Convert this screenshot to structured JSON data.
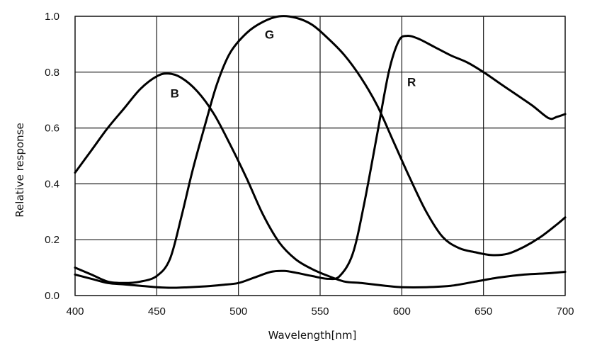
{
  "chart_data": {
    "type": "line",
    "title": "",
    "xlabel": "Wavelength[nm]",
    "ylabel": "Relative response",
    "xlim": [
      400,
      700
    ],
    "ylim": [
      0,
      1.0
    ],
    "x_ticks": [
      "400",
      "450",
      "500",
      "550",
      "600",
      "650",
      "700"
    ],
    "y_ticks": [
      "0.0",
      "0.2",
      "0.4",
      "0.6",
      "0.8",
      "1.0"
    ],
    "grid": true,
    "legend": "inline",
    "line_color": "#000000",
    "series": [
      {
        "name": "B",
        "label_at": [
          461,
          0.71
        ],
        "points": [
          [
            400,
            0.44
          ],
          [
            410,
            0.52
          ],
          [
            420,
            0.6
          ],
          [
            430,
            0.67
          ],
          [
            440,
            0.74
          ],
          [
            450,
            0.785
          ],
          [
            457,
            0.795
          ],
          [
            465,
            0.78
          ],
          [
            475,
            0.73
          ],
          [
            485,
            0.65
          ],
          [
            495,
            0.54
          ],
          [
            505,
            0.42
          ],
          [
            515,
            0.29
          ],
          [
            525,
            0.19
          ],
          [
            535,
            0.13
          ],
          [
            545,
            0.095
          ],
          [
            555,
            0.07
          ],
          [
            565,
            0.05
          ],
          [
            575,
            0.045
          ],
          [
            590,
            0.035
          ],
          [
            600,
            0.03
          ],
          [
            615,
            0.03
          ],
          [
            630,
            0.035
          ],
          [
            645,
            0.05
          ],
          [
            660,
            0.065
          ],
          [
            675,
            0.075
          ],
          [
            690,
            0.08
          ],
          [
            700,
            0.085
          ]
        ]
      },
      {
        "name": "G",
        "label_at": [
          519,
          0.92
        ],
        "points": [
          [
            400,
            0.1
          ],
          [
            410,
            0.075
          ],
          [
            420,
            0.05
          ],
          [
            430,
            0.045
          ],
          [
            440,
            0.05
          ],
          [
            450,
            0.07
          ],
          [
            458,
            0.13
          ],
          [
            465,
            0.28
          ],
          [
            472,
            0.45
          ],
          [
            480,
            0.62
          ],
          [
            487,
            0.76
          ],
          [
            495,
            0.87
          ],
          [
            505,
            0.94
          ],
          [
            515,
            0.98
          ],
          [
            525,
            1.0
          ],
          [
            535,
            0.995
          ],
          [
            545,
            0.97
          ],
          [
            555,
            0.92
          ],
          [
            565,
            0.86
          ],
          [
            575,
            0.78
          ],
          [
            585,
            0.68
          ],
          [
            595,
            0.55
          ],
          [
            605,
            0.42
          ],
          [
            615,
            0.3
          ],
          [
            625,
            0.21
          ],
          [
            635,
            0.17
          ],
          [
            645,
            0.155
          ],
          [
            655,
            0.145
          ],
          [
            665,
            0.15
          ],
          [
            675,
            0.175
          ],
          [
            685,
            0.21
          ],
          [
            695,
            0.255
          ],
          [
            700,
            0.28
          ]
        ]
      },
      {
        "name": "R",
        "label_at": [
          606,
          0.75
        ],
        "points": [
          [
            400,
            0.075
          ],
          [
            410,
            0.06
          ],
          [
            420,
            0.045
          ],
          [
            430,
            0.04
          ],
          [
            440,
            0.035
          ],
          [
            450,
            0.03
          ],
          [
            460,
            0.028
          ],
          [
            470,
            0.03
          ],
          [
            480,
            0.033
          ],
          [
            490,
            0.038
          ],
          [
            500,
            0.045
          ],
          [
            510,
            0.065
          ],
          [
            520,
            0.085
          ],
          [
            528,
            0.088
          ],
          [
            535,
            0.082
          ],
          [
            545,
            0.07
          ],
          [
            555,
            0.06
          ],
          [
            562,
            0.07
          ],
          [
            570,
            0.15
          ],
          [
            577,
            0.33
          ],
          [
            585,
            0.58
          ],
          [
            592,
            0.8
          ],
          [
            598,
            0.91
          ],
          [
            603,
            0.93
          ],
          [
            610,
            0.92
          ],
          [
            620,
            0.89
          ],
          [
            630,
            0.86
          ],
          [
            640,
            0.835
          ],
          [
            650,
            0.8
          ],
          [
            660,
            0.76
          ],
          [
            670,
            0.72
          ],
          [
            680,
            0.68
          ],
          [
            690,
            0.635
          ],
          [
            695,
            0.64
          ],
          [
            700,
            0.65
          ]
        ]
      }
    ]
  }
}
